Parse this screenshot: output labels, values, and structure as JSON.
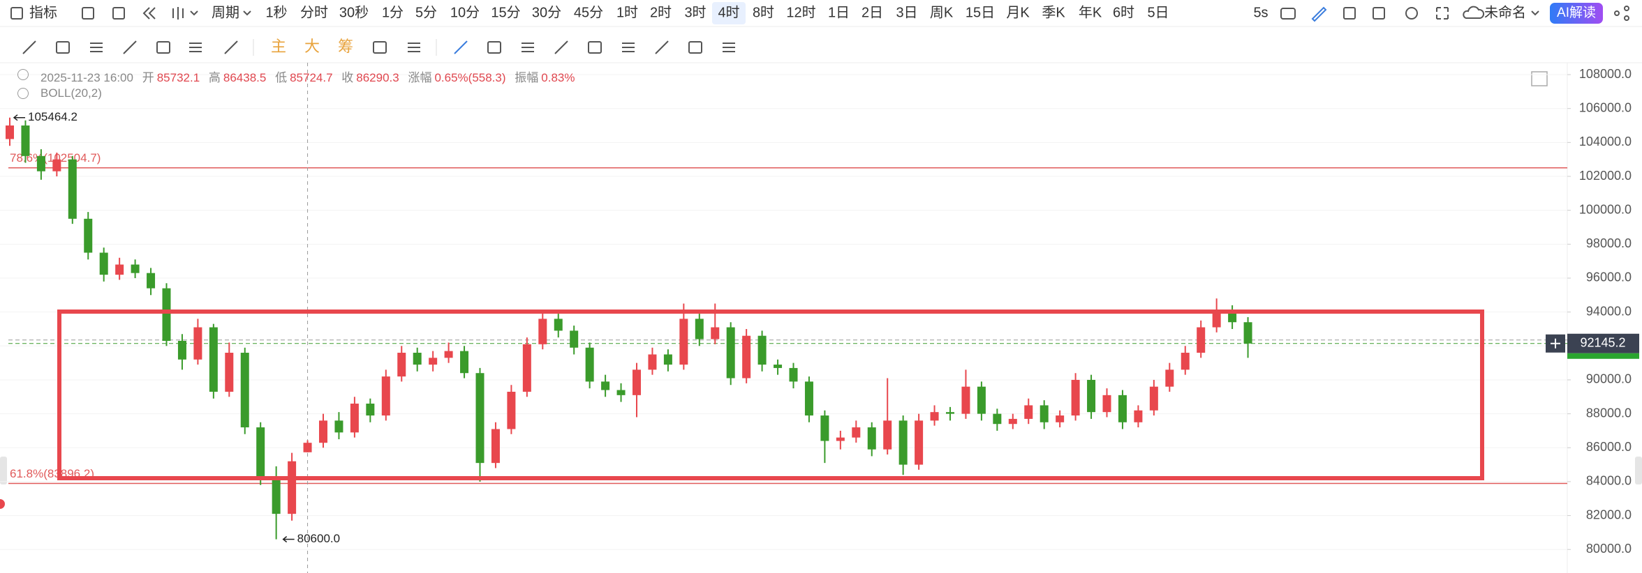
{
  "toolbar": {
    "indicator": "指标",
    "period": "周期",
    "periods": [
      "1秒",
      "分时",
      "30秒",
      "1分",
      "5分",
      "10分",
      "15分",
      "30分",
      "45分",
      "1时",
      "2时",
      "3时",
      "4时",
      "8时",
      "12时",
      "1日",
      "2日",
      "3日",
      "周K",
      "15日",
      "月K",
      "季K",
      "年K",
      "6时",
      "5日"
    ],
    "active_period": 12,
    "refresh": "5s",
    "layout_name": "未命名",
    "ai_button": "AI解读"
  },
  "drawing_toolbar": {
    "chips": [
      "主",
      "大",
      "筹"
    ]
  },
  "info": {
    "datetime": "2025-11-23 16:00",
    "open_label": "开",
    "high_label": "高",
    "low_label": "低",
    "close_label": "收",
    "change_label": "涨幅",
    "change": "0.65%(558.3)",
    "amplitude_label": "振幅",
    "amplitude": "0.83%",
    "indicator": "BOLL(20,2)"
  },
  "chart_data": {
    "type": "candlestick",
    "up_color": "#e8474d",
    "down_color": "#3a9b2b",
    "crosshair_index": 19,
    "ylim": [
      78900,
      108700
    ],
    "yticks": [
      {
        "value": 80000,
        "label": "80000.0"
      },
      {
        "value": 82000,
        "label": "82000.0"
      },
      {
        "value": 84000,
        "label": "84000.0"
      },
      {
        "value": 86000,
        "label": "86000.0"
      },
      {
        "value": 88000,
        "label": "88000.0"
      },
      {
        "value": 90000,
        "label": "90000.0"
      },
      {
        "value": 92000,
        "label": "92000.0"
      },
      {
        "value": 94000,
        "label": "94000.0"
      },
      {
        "value": 96000,
        "label": "96000.0"
      },
      {
        "value": 98000,
        "label": "98000.0"
      },
      {
        "value": 100000,
        "label": "100000.0"
      },
      {
        "value": 102000,
        "label": "102000.0"
      },
      {
        "value": 104000,
        "label": "104000.0"
      },
      {
        "value": 106000,
        "label": "106000.0"
      },
      {
        "value": 108000,
        "label": "108000.0"
      }
    ],
    "grid": true,
    "levels": [
      {
        "value": 102504.7,
        "label": "78.6%(102504.7)",
        "color": "#e05a5a"
      },
      {
        "value": 83896.2,
        "label": "61.8%(83896.2)",
        "color": "#e05a5a"
      }
    ],
    "max_label": 105464.2,
    "min_label": {
      "value": 80600,
      "label": "80600.0"
    },
    "current_price": 92145.2,
    "candles": [
      [
        104200,
        105464.2,
        103800,
        105000
      ],
      [
        105000,
        105300,
        102800,
        103200
      ],
      [
        103200,
        103600,
        101800,
        102300
      ],
      [
        102300,
        103400,
        102000,
        103000
      ],
      [
        103000,
        103200,
        99200,
        99500
      ],
      [
        99500,
        99900,
        97100,
        97500
      ],
      [
        97500,
        97800,
        95800,
        96200
      ],
      [
        96200,
        97200,
        95900,
        96800
      ],
      [
        96800,
        97100,
        96000,
        96300
      ],
      [
        96300,
        96600,
        95000,
        95400
      ],
      [
        95400,
        95700,
        92000,
        92300
      ],
      [
        92300,
        92700,
        90600,
        91200
      ],
      [
        91200,
        93600,
        90900,
        93100
      ],
      [
        93100,
        93300,
        88900,
        89300
      ],
      [
        89300,
        92200,
        89000,
        91600
      ],
      [
        91600,
        91900,
        86800,
        87200
      ],
      [
        87200,
        87500,
        83800,
        84300
      ],
      [
        84300,
        84900,
        80600,
        82100
      ],
      [
        82100,
        85700,
        81700,
        85200
      ],
      [
        85732.1,
        86438.5,
        85724.7,
        86290.3
      ],
      [
        86290.3,
        88000,
        86000,
        87600
      ],
      [
        87600,
        88100,
        86500,
        86900
      ],
      [
        86900,
        89000,
        86600,
        88600
      ],
      [
        88600,
        88900,
        87500,
        87900
      ],
      [
        87900,
        90600,
        87600,
        90200
      ],
      [
        90200,
        92000,
        89900,
        91600
      ],
      [
        91600,
        91900,
        90500,
        90900
      ],
      [
        90900,
        91700,
        90500,
        91300
      ],
      [
        91300,
        92200,
        91000,
        91700
      ],
      [
        91700,
        92000,
        90100,
        90400
      ],
      [
        90400,
        90700,
        84000,
        85100
      ],
      [
        85100,
        87500,
        84800,
        87100
      ],
      [
        87100,
        89700,
        86800,
        89300
      ],
      [
        89300,
        92500,
        89000,
        92100
      ],
      [
        92100,
        94100,
        91800,
        93600
      ],
      [
        93600,
        93900,
        92500,
        92900
      ],
      [
        92900,
        93200,
        91500,
        91900
      ],
      [
        91900,
        92200,
        89500,
        89900
      ],
      [
        89900,
        90300,
        89000,
        89400
      ],
      [
        89400,
        89800,
        88700,
        89100
      ],
      [
        89100,
        91000,
        87800,
        90600
      ],
      [
        90600,
        91900,
        90300,
        91500
      ],
      [
        91500,
        91800,
        90500,
        90900
      ],
      [
        90900,
        94500,
        90600,
        93600
      ],
      [
        93600,
        93900,
        92000,
        92400
      ],
      [
        92400,
        94500,
        92100,
        93100
      ],
      [
        93100,
        93400,
        89700,
        90100
      ],
      [
        90100,
        93000,
        89800,
        92600
      ],
      [
        92600,
        92900,
        90500,
        90900
      ],
      [
        90900,
        91200,
        90300,
        90700
      ],
      [
        90700,
        91000,
        89500,
        89900
      ],
      [
        89900,
        90200,
        87500,
        87900
      ],
      [
        87900,
        88200,
        85100,
        86400
      ],
      [
        86400,
        87000,
        85900,
        86600
      ],
      [
        86600,
        87600,
        86300,
        87200
      ],
      [
        87200,
        87500,
        85500,
        85900
      ],
      [
        85900,
        90100,
        85600,
        87600
      ],
      [
        87600,
        87900,
        84400,
        85000
      ],
      [
        85000,
        88000,
        84700,
        87600
      ],
      [
        87600,
        88500,
        87300,
        88100
      ],
      [
        88100,
        88400,
        87600,
        88000
      ],
      [
        88000,
        90600,
        87700,
        89600
      ],
      [
        89600,
        89900,
        87600,
        88000
      ],
      [
        88000,
        88300,
        87000,
        87400
      ],
      [
        87400,
        88000,
        87100,
        87700
      ],
      [
        87700,
        88900,
        87400,
        88500
      ],
      [
        88500,
        88800,
        87100,
        87500
      ],
      [
        87500,
        88200,
        87200,
        87900
      ],
      [
        87900,
        90400,
        87600,
        90000
      ],
      [
        90000,
        90300,
        87700,
        88100
      ],
      [
        88100,
        89500,
        87800,
        89100
      ],
      [
        89100,
        89400,
        87100,
        87500
      ],
      [
        87500,
        88500,
        87200,
        88200
      ],
      [
        88200,
        90000,
        87900,
        89600
      ],
      [
        89600,
        91000,
        89300,
        90600
      ],
      [
        90600,
        92000,
        90300,
        91600
      ],
      [
        91600,
        93500,
        91300,
        93100
      ],
      [
        93100,
        94800,
        92800,
        94100
      ],
      [
        94100,
        94400,
        93000,
        93400
      ],
      [
        93400,
        93700,
        91300,
        92145.2
      ]
    ]
  }
}
